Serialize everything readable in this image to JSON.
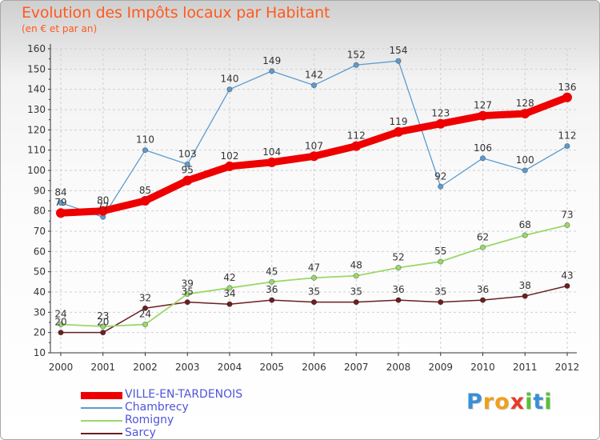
{
  "header": {
    "title": "Evolution des Impôts locaux par Habitant",
    "subtitle": "(en € et par an)"
  },
  "logo": {
    "letters": [
      "P",
      "r",
      "o",
      "x",
      "i",
      "t",
      "i"
    ]
  },
  "colors": {
    "title": "#ff5a1e",
    "legend_text": "#4f55d9",
    "axis": "#333333",
    "grid": "#cfcfcf",
    "logo": [
      "#3b8fd6",
      "#f0a020",
      "#f0a020",
      "#e83a2a",
      "#5abf3a",
      "#3b8fd6",
      "#5abf3a"
    ]
  },
  "chart_data": {
    "type": "line",
    "title": "Evolution des Impôts locaux par Habitant",
    "subtitle": "(en € et par an)",
    "xlabel": "",
    "ylabel": "",
    "x": [
      2000,
      2001,
      2002,
      2003,
      2004,
      2005,
      2006,
      2007,
      2008,
      2009,
      2010,
      2011,
      2012
    ],
    "ylim": [
      10,
      160
    ],
    "yticks": [
      10,
      20,
      30,
      40,
      50,
      60,
      70,
      80,
      90,
      100,
      110,
      120,
      130,
      140,
      150,
      160
    ],
    "grid": true,
    "legend": "bottom-left",
    "series": [
      {
        "name": "Sarcy",
        "color": "#6b1f22",
        "values": [
          20,
          20,
          32,
          35,
          34,
          36,
          35,
          35,
          36,
          35,
          36,
          38,
          43
        ]
      },
      {
        "name": "Romigny",
        "color": "#9ad86a",
        "values": [
          24,
          23,
          24,
          39,
          42,
          45,
          47,
          48,
          52,
          55,
          62,
          68,
          73
        ]
      },
      {
        "name": "Chambrecy",
        "color": "#5d9bd0",
        "values": [
          84,
          77,
          110,
          103,
          140,
          149,
          142,
          152,
          154,
          92,
          106,
          100,
          112
        ]
      },
      {
        "name": "VILLE-EN-TARDENOIS",
        "color": "#ee0000",
        "values": [
          79,
          80,
          85,
          95,
          102,
          104,
          107,
          112,
          119,
          123,
          127,
          128,
          136
        ]
      }
    ],
    "legend_order": [
      "VILLE-EN-TARDENOIS",
      "Chambrecy",
      "Romigny",
      "Sarcy"
    ]
  }
}
